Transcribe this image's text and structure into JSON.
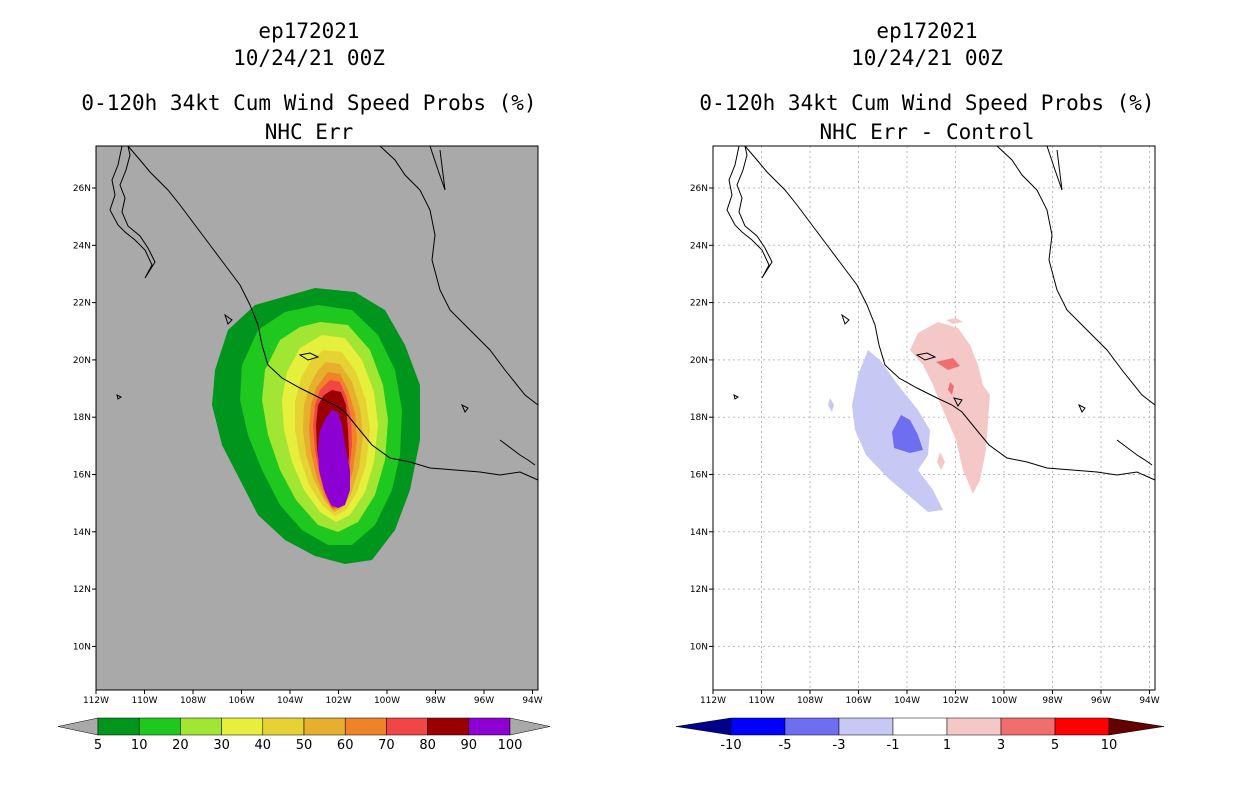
{
  "left": {
    "storm": "ep172021",
    "datetime": "10/24/21 00Z",
    "product": "0-120h 34kt Cum Wind Speed Probs (%)",
    "subtitle": "NHC Err",
    "colorbar": {
      "labels": [
        "5",
        "10",
        "20",
        "30",
        "40",
        "50",
        "60",
        "70",
        "80",
        "90",
        "100"
      ],
      "colors": [
        "#00961e",
        "#1ec81e",
        "#a0e632",
        "#e6f03c",
        "#e6d232",
        "#e6af2d",
        "#f08228",
        "#f04646",
        "#9b0000",
        "#8c00d2"
      ],
      "end_color": "#a9a9a9"
    }
  },
  "right": {
    "storm": "ep172021",
    "datetime": "10/24/21 00Z",
    "product": "0-120h 34kt Cum Wind Speed Probs (%)",
    "subtitle": "NHC Err - Control",
    "colorbar": {
      "labels": [
        "-10",
        "-5",
        "-3",
        "-1",
        "1",
        "3",
        "5",
        "10"
      ],
      "colors": [
        "#0000ff",
        "#6e6ef0",
        "#c8c8f5",
        "#ffffff",
        "#f5c8c8",
        "#f06e6e",
        "#ff0000"
      ],
      "low_end_color": "#00008c",
      "high_end_color": "#640000"
    }
  },
  "lat_labels": [
    "26N",
    "24N",
    "22N",
    "20N",
    "18N",
    "16N",
    "14N",
    "12N",
    "10N"
  ],
  "lon_labels": [
    "112W",
    "110W",
    "108W",
    "106W",
    "104W",
    "102W",
    "100W",
    "98W",
    "96W",
    "94W"
  ],
  "background_color": "#a9a9a9"
}
